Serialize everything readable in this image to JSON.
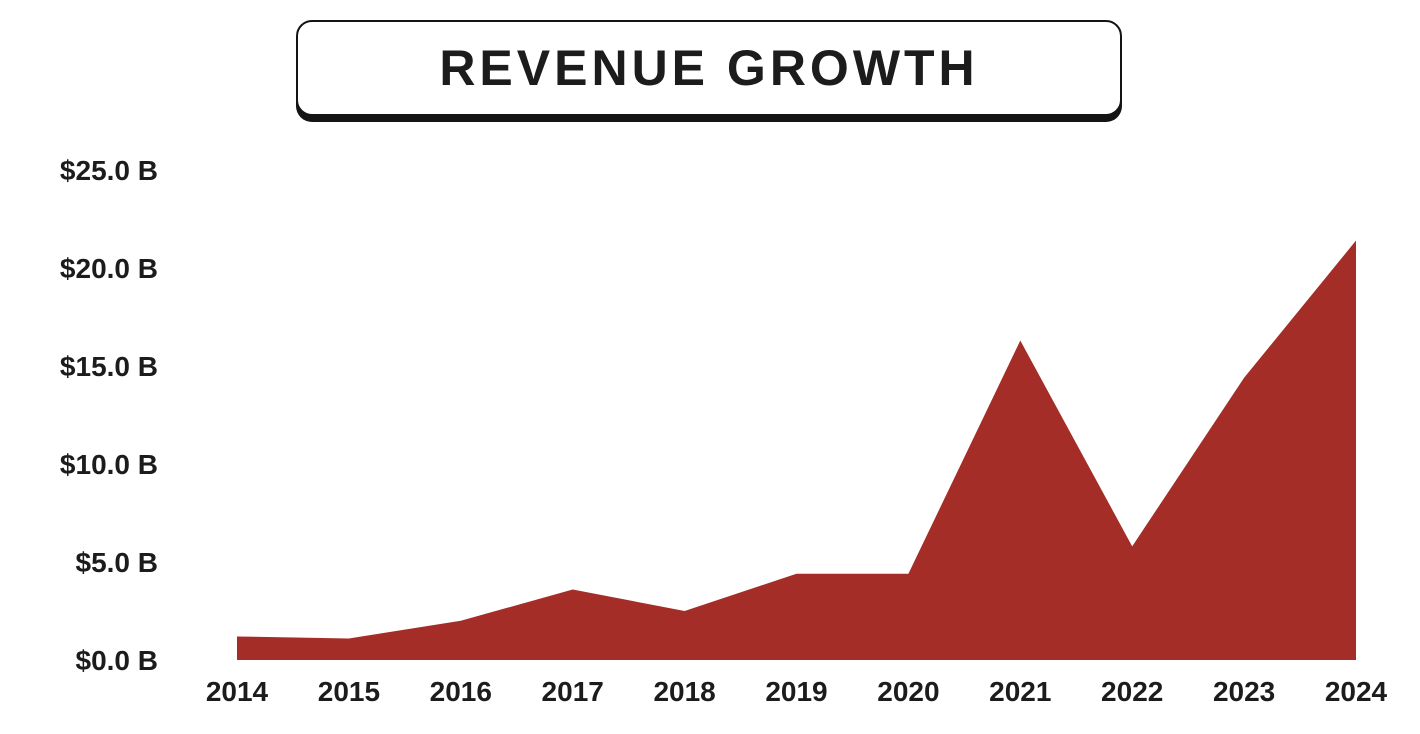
{
  "chart_data": {
    "type": "area",
    "title": "REVENUE GROWTH",
    "xlabel": "",
    "ylabel": "",
    "x": [
      "2014",
      "2015",
      "2016",
      "2017",
      "2018",
      "2019",
      "2020",
      "2021",
      "2022",
      "2023",
      "2024"
    ],
    "series": [
      {
        "values": [
          1.2,
          1.1,
          2.0,
          3.6,
          2.5,
          4.4,
          4.4,
          16.3,
          5.8,
          14.4,
          21.4
        ]
      }
    ],
    "ylim": [
      0,
      25
    ],
    "yticks": [
      "$0.0 B",
      "$5.0 B",
      "$10.0 B",
      "$15.0 B",
      "$20.0 B",
      "$25.0 B"
    ],
    "grid": false,
    "legend": "none",
    "colors": {
      "fill": "#a52d27",
      "text": "#1c1c1c"
    }
  }
}
